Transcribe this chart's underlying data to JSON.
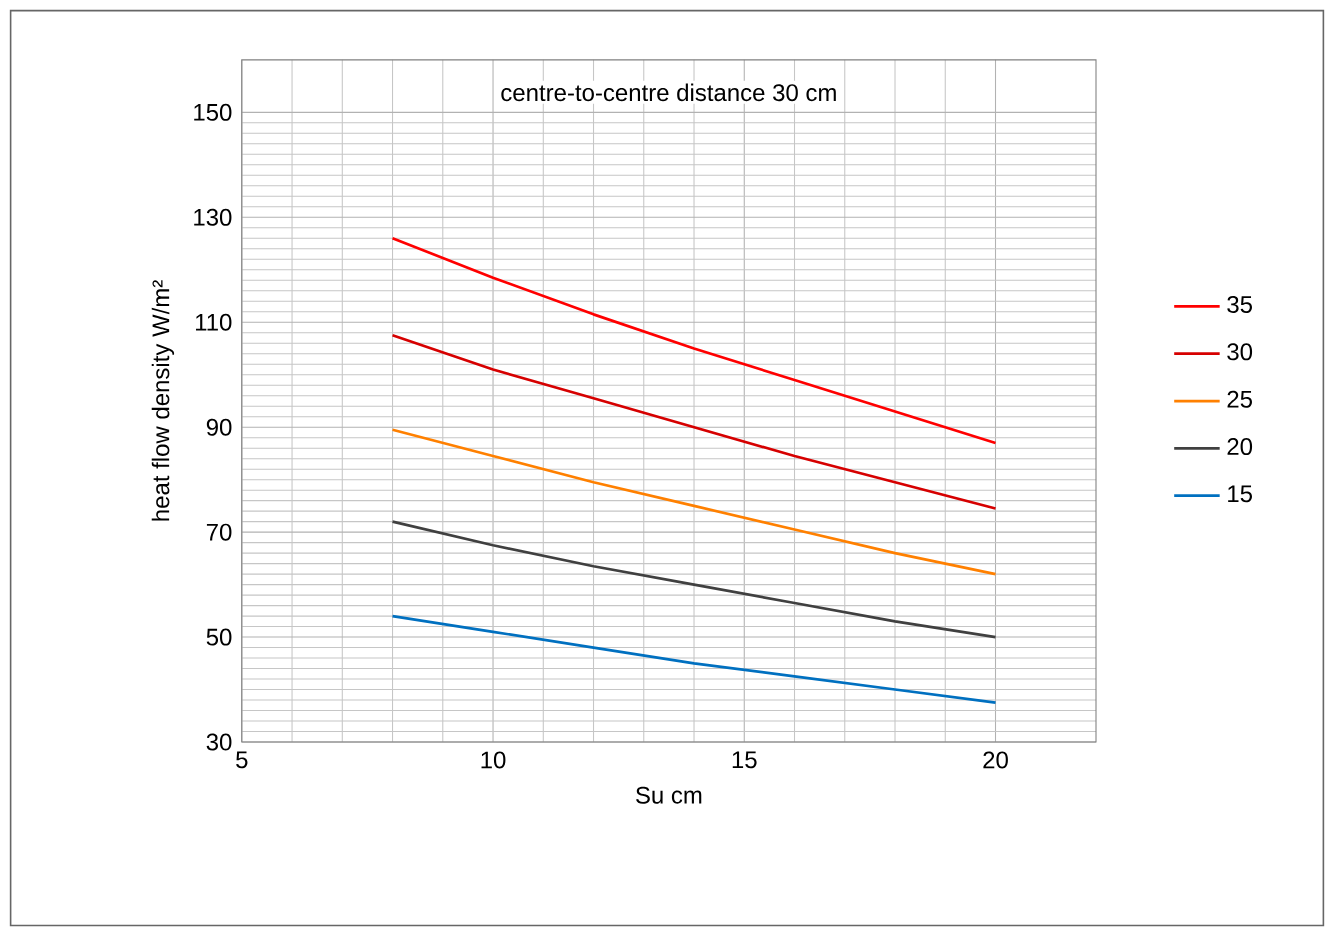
{
  "chart_data": {
    "type": "line",
    "title": "centre-to-centre distance 30 cm",
    "xlabel": "Su cm",
    "ylabel": "heat flow density W/m²",
    "xlim": [
      5,
      22
    ],
    "ylim": [
      30,
      160
    ],
    "xticks": [
      5,
      10,
      15,
      20
    ],
    "yticks": [
      30,
      50,
      70,
      90,
      110,
      130,
      150
    ],
    "grid": true,
    "legend": "right",
    "marker": "none",
    "line_style": "solid",
    "x": [
      8,
      10,
      12,
      14,
      16,
      18,
      20
    ],
    "series": [
      {
        "name": "35",
        "color": "#ff0000",
        "values": [
          126,
          118.5,
          111.5,
          105,
          99,
          93,
          87
        ]
      },
      {
        "name": "30",
        "color": "#d60000",
        "values": [
          107.5,
          101,
          95.5,
          90,
          84.5,
          79.5,
          74.5
        ]
      },
      {
        "name": "25",
        "color": "#ff8000",
        "values": [
          89.5,
          84.5,
          79.5,
          75,
          70.5,
          66,
          62
        ]
      },
      {
        "name": "20",
        "color": "#404040",
        "values": [
          72,
          67.5,
          63.5,
          60,
          56.5,
          53,
          50
        ]
      },
      {
        "name": "15",
        "color": "#0070c0",
        "values": [
          54,
          51,
          48,
          45,
          42.5,
          40,
          37.5
        ]
      }
    ]
  }
}
